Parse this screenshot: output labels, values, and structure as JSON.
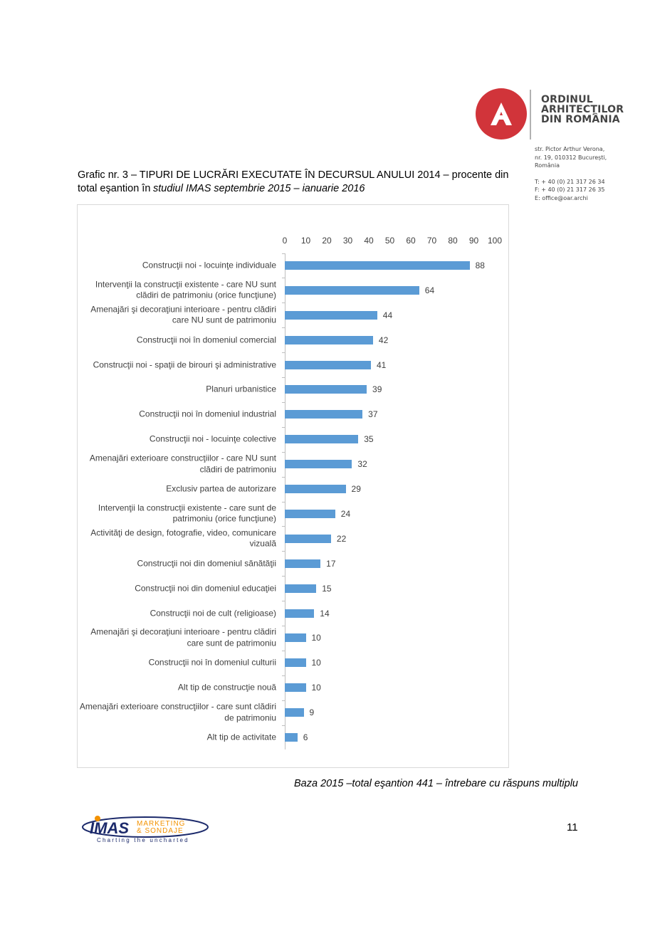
{
  "header": {
    "logo_lines": [
      "ORDINUL",
      "ARHITECȚILOR",
      "DIN ROMÂNIA"
    ],
    "address": [
      "str. Pictor Arthur Verona,",
      "nr. 19, 010312 București,",
      "România",
      "T: + 40 (0) 21 317 26 34",
      "F: + 40 (0) 21 317 26 35",
      "E: office@oar.archi"
    ]
  },
  "caption": {
    "text": "Grafic nr. 3 – TIPURI DE LUCRĂRI EXECUTATE ÎN DECURSUL ANULUI 2014 – procente din total eşantion în",
    "italic": "studiul IMAS septembrie 2015 – ianuarie 2016"
  },
  "chart_data": {
    "type": "bar",
    "orientation": "horizontal",
    "color": "#5b9bd5",
    "categories": [
      "Construcţii noi  - locuinţe individuale",
      "Intervenţii la construcţii existente - care NU sunt clădiri de patrimoniu (orice funcţiune)",
      "Amenajări şi decoraţiuni interioare - pentru clădiri care NU sunt de patrimoniu",
      "Construcţii noi în domeniul comercial",
      "Construcţii noi - spaţii de birouri şi administrative",
      "Planuri urbanistice",
      "Construcţii noi în domeniul industrial",
      "Construcţii noi - locuinţe colective",
      "Amenajări exterioare construcţiilor - care NU sunt clădiri de patrimoniu",
      "Exclusiv partea de autorizare",
      "Intervenţii la construcţii existente - care sunt de patrimoniu (orice funcţiune)",
      "Activităţi de design, fotografie, video, comunicare vizuală",
      "Construcţii noi din domeniul sănătăţii",
      "Construcţii noi din domeniul educaţiei",
      "Construcţii noi de cult (religioase)",
      "Amenajări şi decoraţiuni interioare - pentru clădiri care sunt de patrimoniu",
      "Construcţii noi în domeniul culturii",
      "Alt tip de construcţie nouă",
      "Amenajări exterioare construcţiilor - care sunt clădiri de patrimoniu",
      "Alt tip de activitate"
    ],
    "values": [
      88,
      64,
      44,
      42,
      41,
      39,
      37,
      35,
      32,
      29,
      24,
      22,
      17,
      15,
      14,
      10,
      10,
      10,
      9,
      6
    ],
    "xlim": [
      0,
      100
    ],
    "xticks": [
      0,
      10,
      20,
      30,
      40,
      50,
      60,
      70,
      80,
      90,
      100
    ],
    "axis_position": "top"
  },
  "note": "Baza 2015 –total eşantion 441 – întrebare cu răspuns multiplu",
  "footer": {
    "brand": "IMAS",
    "brand_lines": [
      "MARKETING",
      "& SONDAJE"
    ],
    "tagline": "Charting the uncharted",
    "page_number": 11
  }
}
